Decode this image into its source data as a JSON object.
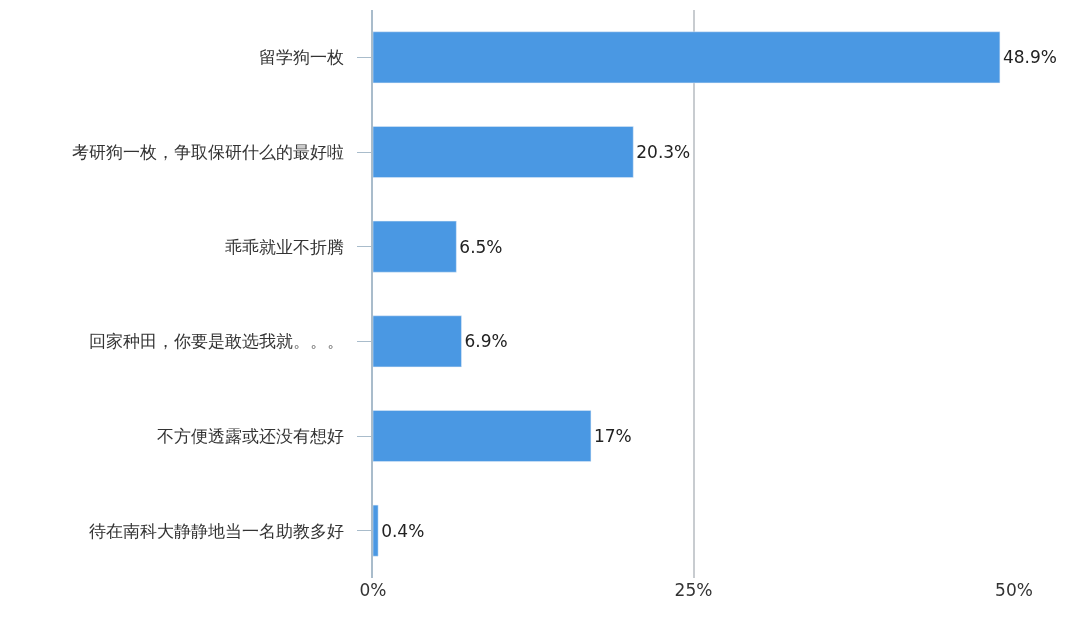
{
  "chart_data": {
    "type": "bar",
    "orientation": "horizontal",
    "categories": [
      "留学狗一枚",
      "考研狗一枚，争取保研什么的最好啦",
      "乖乖就业不折腾",
      "回家种田，你要是敢选我就。。。",
      "不方便透露或还没有想好",
      "待在南科大静静地当一名助教多好"
    ],
    "values": [
      48.9,
      20.3,
      6.5,
      6.9,
      17,
      0.4
    ],
    "value_labels": [
      "48.9%",
      "20.3%",
      "6.5%",
      "6.9%",
      "17%",
      "0.4%"
    ],
    "color": "#4a98e3",
    "xlim": [
      0,
      50
    ],
    "xticks": [
      {
        "value": 0,
        "label": "0%"
      },
      {
        "value": 25,
        "label": "25%"
      },
      {
        "value": 50,
        "label": "50%"
      }
    ],
    "grid": "x",
    "legend": false
  }
}
